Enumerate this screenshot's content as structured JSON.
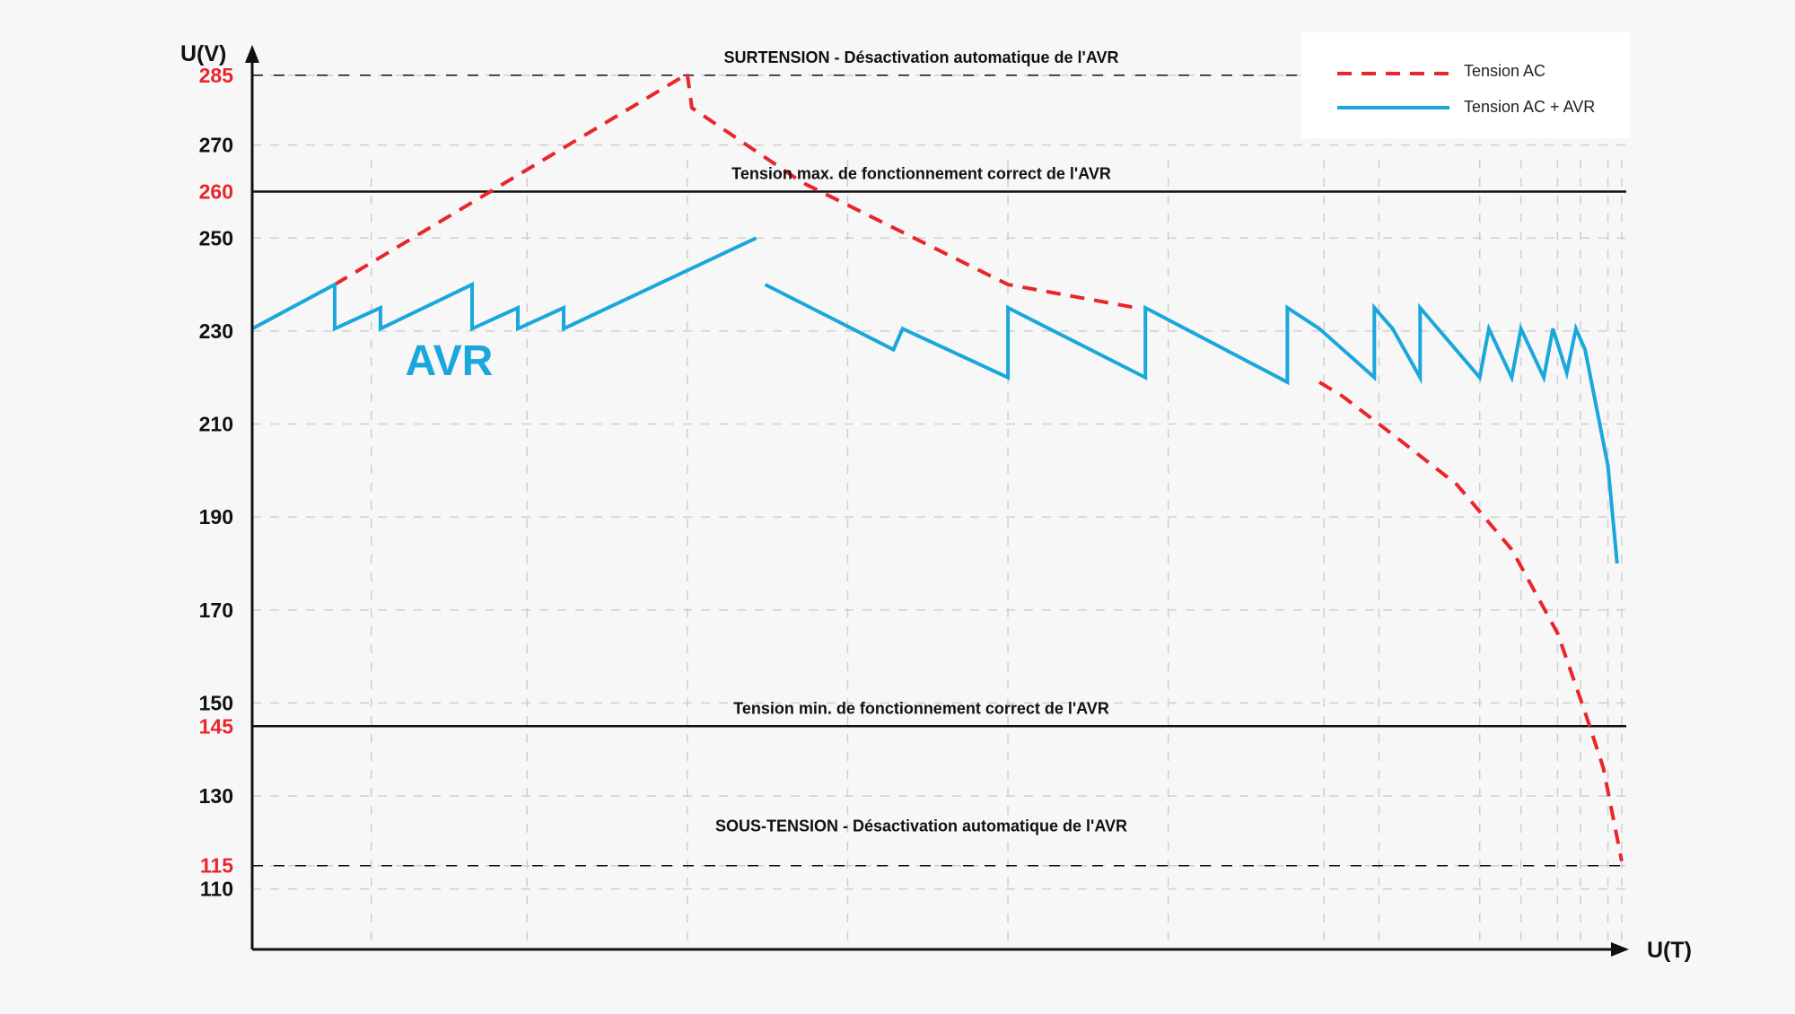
{
  "chart_data": {
    "type": "line",
    "title": "",
    "xlabel": "U(T)",
    "ylabel": "U(V)",
    "colors": {
      "background": "#f7f7f7",
      "axis": "#111111",
      "grid": "#cfcfcf",
      "tension_ac": "#e8262b",
      "tension_ac_avr": "#1aa7dc",
      "highlight_tick": "#e8262b",
      "normal_tick": "#111111",
      "reference_line": "#111111"
    },
    "y_ticks": [
      {
        "value": 285,
        "label": "285",
        "highlight": true
      },
      {
        "value": 270,
        "label": "270",
        "highlight": false
      },
      {
        "value": 260,
        "label": "260",
        "highlight": true
      },
      {
        "value": 250,
        "label": "250",
        "highlight": false
      },
      {
        "value": 230,
        "label": "230",
        "highlight": false
      },
      {
        "value": 210,
        "label": "210",
        "highlight": false
      },
      {
        "value": 190,
        "label": "190",
        "highlight": false
      },
      {
        "value": 170,
        "label": "170",
        "highlight": false
      },
      {
        "value": 150,
        "label": "150",
        "highlight": false
      },
      {
        "value": 145,
        "label": "145",
        "highlight": true
      },
      {
        "value": 130,
        "label": "130",
        "highlight": false
      },
      {
        "value": 115,
        "label": "115",
        "highlight": true
      },
      {
        "value": 110,
        "label": "110",
        "highlight": false
      }
    ],
    "x_gridlines": [
      2.6,
      6.0,
      9.5,
      13.0,
      16.5,
      20.0,
      23.4,
      24.6,
      26.8,
      27.7,
      28.5,
      29.0,
      29.6,
      29.9
    ],
    "reference_lines": [
      {
        "value": 285,
        "style": "dashed",
        "label": "SURTENSION - Désactivation automatique de l'AVR",
        "label_position": "above"
      },
      {
        "value": 260,
        "style": "solid",
        "label": "Tension max. de fonctionnement correct de l'AVR",
        "label_position": "above"
      },
      {
        "value": 145,
        "style": "solid",
        "label": "Tension min. de fonctionnement correct de l'AVR",
        "label_position": "above"
      },
      {
        "value": 115,
        "style": "dashed",
        "label": "SOUS-TENSION - Désactivation automatique de l'AVR",
        "label_position": "well-above"
      }
    ],
    "annotations": [
      {
        "text": "AVR",
        "x": 4.3,
        "y": 220.5
      }
    ],
    "legend": {
      "position": "top-right",
      "entries": [
        {
          "label": "Tension AC",
          "series": "tension_ac"
        },
        {
          "label": "Tension AC + AVR",
          "series": "tension_ac_avr"
        }
      ]
    },
    "xlim": [
      0,
      30
    ],
    "ylim": [
      97,
      290
    ],
    "series": [
      {
        "name": "Tension AC",
        "key": "tension_ac",
        "style": "dashed",
        "segments": [
          [
            [
              1.8,
              240
            ],
            [
              9.5,
              285.3
            ]
          ],
          [
            [
              9.5,
              285.3
            ],
            [
              9.6,
              278
            ],
            [
              12.0,
              262
            ],
            [
              16.5,
              240
            ],
            [
              19.3,
              235
            ]
          ],
          [
            [
              23.3,
              219
            ],
            [
              23.8,
              216
            ],
            [
              25.0,
              207
            ],
            [
              26.3,
              197
            ],
            [
              27.5,
              183
            ],
            [
              28.5,
              165
            ],
            [
              29.1,
              148
            ],
            [
              29.5,
              136
            ],
            [
              29.9,
              116
            ]
          ]
        ]
      },
      {
        "name": "Tension AC + AVR",
        "key": "tension_ac_avr",
        "style": "solid",
        "segments": [
          [
            [
              0,
              230.5
            ],
            [
              1.8,
              240
            ],
            [
              1.8,
              230.5
            ],
            [
              2.8,
              235
            ],
            [
              2.8,
              230.5
            ],
            [
              4.8,
              240
            ],
            [
              4.8,
              230.5
            ],
            [
              5.8,
              235
            ],
            [
              5.8,
              230.5
            ],
            [
              6.8,
              235
            ],
            [
              6.8,
              230.5
            ],
            [
              11.0,
              250
            ]
          ],
          [
            [
              11.2,
              240
            ],
            [
              14.0,
              226
            ],
            [
              14.2,
              230.5
            ],
            [
              16.5,
              220
            ],
            [
              16.5,
              235
            ],
            [
              19.5,
              220
            ],
            [
              19.5,
              235
            ],
            [
              22.6,
              219
            ],
            [
              22.6,
              235
            ],
            [
              23.3,
              230.5
            ],
            [
              24.5,
              220
            ],
            [
              24.5,
              235
            ],
            [
              24.9,
              230.5
            ],
            [
              25.5,
              220
            ],
            [
              25.5,
              235
            ],
            [
              26.8,
              220
            ],
            [
              27.0,
              230.5
            ],
            [
              27.5,
              220
            ],
            [
              27.7,
              230.5
            ],
            [
              28.2,
              220
            ],
            [
              28.4,
              230.5
            ],
            [
              28.7,
              221
            ],
            [
              28.9,
              230.5
            ],
            [
              29.1,
              226
            ],
            [
              29.3,
              216
            ],
            [
              29.6,
              201
            ],
            [
              29.8,
              180
            ]
          ]
        ]
      }
    ]
  }
}
